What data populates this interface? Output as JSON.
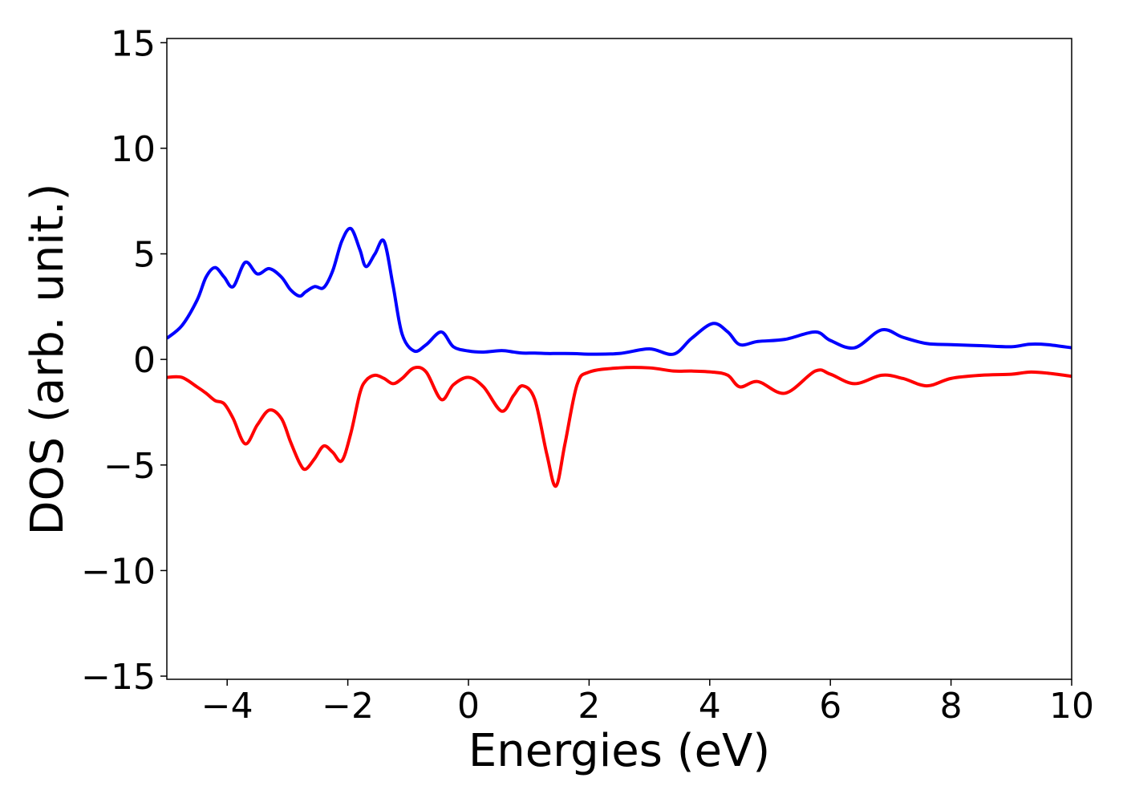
{
  "chart_data": {
    "type": "line",
    "xlabel": "Energies (eV)",
    "ylabel": "DOS (arb. unit.)",
    "x": [
      -5,
      -4.75,
      -4.5,
      -4.35,
      -4.2,
      -4.05,
      -3.9,
      -3.7,
      -3.5,
      -3.3,
      -3.1,
      -2.95,
      -2.8,
      -2.7,
      -2.55,
      -2.4,
      -2.25,
      -2.1,
      -1.95,
      -1.8,
      -1.7,
      -1.55,
      -1.4,
      -1.25,
      -1.1,
      -0.9,
      -0.7,
      -0.45,
      -0.25,
      0,
      0.25,
      0.55,
      0.75,
      0.9,
      1.1,
      1.3,
      1.45,
      1.6,
      1.8,
      2,
      2.5,
      3,
      3.4,
      3.7,
      4.05,
      4.3,
      4.5,
      4.8,
      5.25,
      5.75,
      6,
      6.4,
      6.85,
      7.2,
      7.6,
      8,
      8.5,
      9,
      9.3,
      9.6,
      10
    ],
    "series": [
      {
        "color": "#0000ff",
        "values": [
          1.0,
          1.6,
          2.8,
          3.9,
          4.35,
          3.9,
          3.45,
          4.6,
          4.05,
          4.3,
          3.9,
          3.3,
          3.0,
          3.2,
          3.45,
          3.4,
          4.2,
          5.6,
          6.2,
          5.2,
          4.4,
          5.0,
          5.6,
          3.5,
          1.2,
          0.4,
          0.7,
          1.3,
          0.6,
          0.4,
          0.35,
          0.42,
          0.35,
          0.3,
          0.3,
          0.28,
          0.28,
          0.28,
          0.27,
          0.25,
          0.28,
          0.5,
          0.25,
          1.0,
          1.7,
          1.3,
          0.7,
          0.85,
          0.95,
          1.3,
          0.9,
          0.55,
          1.4,
          1.05,
          0.75,
          0.7,
          0.65,
          0.6,
          0.72,
          0.7,
          0.55
        ]
      },
      {
        "color": "#ff0000",
        "values": [
          -0.85,
          -0.85,
          -1.3,
          -1.6,
          -1.95,
          -2.1,
          -2.8,
          -4.0,
          -3.1,
          -2.4,
          -2.8,
          -3.9,
          -4.9,
          -5.2,
          -4.7,
          -4.1,
          -4.4,
          -4.8,
          -3.5,
          -1.6,
          -1.0,
          -0.75,
          -0.9,
          -1.15,
          -0.9,
          -0.4,
          -0.6,
          -1.9,
          -1.2,
          -0.85,
          -1.3,
          -2.45,
          -1.7,
          -1.25,
          -1.9,
          -4.5,
          -6.0,
          -4.0,
          -1.2,
          -0.6,
          -0.4,
          -0.4,
          -0.55,
          -0.55,
          -0.6,
          -0.75,
          -1.3,
          -1.05,
          -1.6,
          -0.55,
          -0.7,
          -1.15,
          -0.75,
          -0.9,
          -1.25,
          -0.9,
          -0.75,
          -0.7,
          -0.6,
          -0.65,
          -0.8
        ]
      }
    ],
    "xlim": [
      -5,
      10
    ],
    "ylim": [
      -15.15,
      15.2
    ],
    "xticks": [
      {
        "value": -4,
        "label": "−4"
      },
      {
        "value": -2,
        "label": "−2"
      },
      0,
      2,
      4,
      6,
      8,
      10
    ],
    "yticks": [
      {
        "value": -15,
        "label": "−15"
      },
      {
        "value": -10,
        "label": "−10"
      },
      {
        "value": -5,
        "label": "−5"
      },
      0,
      5,
      10,
      15
    ],
    "grid": false
  }
}
